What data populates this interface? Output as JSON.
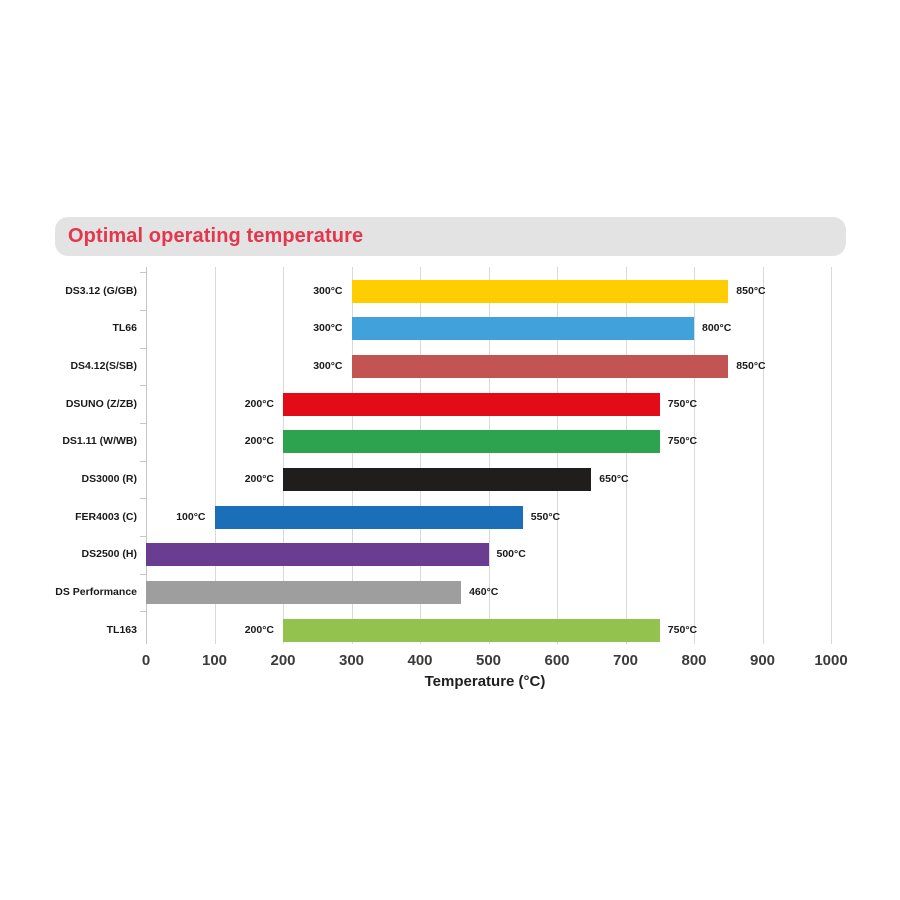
{
  "title": "Optimal operating temperature",
  "colors": {
    "title_text": "#e4374d",
    "banner_bg": "#e3e3e3",
    "grid": "#d9d9d9",
    "axis": "#c6c6c6",
    "tick_label": "#3b3b3a",
    "value_label": "#1a1a1a"
  },
  "chart_data": {
    "type": "bar",
    "orientation": "horizontal",
    "title": "Optimal operating temperature",
    "xlabel": "Temperature (°C)",
    "xlim": [
      0,
      1000
    ],
    "xticks": [
      0,
      100,
      200,
      300,
      400,
      500,
      600,
      700,
      800,
      900,
      1000
    ],
    "grid": true,
    "legend": "none",
    "categories": [
      "DS3.12 (G/GB)",
      "TL66",
      "DS4.12(S/SB)",
      "DSUNO (Z/ZB)",
      "DS1.11 (W/WB)",
      "DS3000 (R)",
      "FER4003 (C)",
      "DS2500 (H)",
      "DS Performance",
      "TL163"
    ],
    "bars": [
      {
        "label": "DS3.12 (G/GB)",
        "start": 300,
        "end": 850,
        "color": "#ffce00",
        "start_label": "300°C",
        "end_label": "850°C"
      },
      {
        "label": "TL66",
        "start": 300,
        "end": 800,
        "color": "#41a1db",
        "start_label": "300°C",
        "end_label": "800°C"
      },
      {
        "label": "DS4.12(S/SB)",
        "start": 300,
        "end": 850,
        "color": "#c25553",
        "start_label": "300°C",
        "end_label": "850°C"
      },
      {
        "label": "DSUNO (Z/ZB)",
        "start": 200,
        "end": 750,
        "color": "#e30b17",
        "start_label": "200°C",
        "end_label": "750°C"
      },
      {
        "label": "DS1.11 (W/WB)",
        "start": 200,
        "end": 750,
        "color": "#2da24f",
        "start_label": "200°C",
        "end_label": "750°C"
      },
      {
        "label": "DS3000 (R)",
        "start": 200,
        "end": 650,
        "color": "#1f1e1c",
        "start_label": "200°C",
        "end_label": "650°C"
      },
      {
        "label": "FER4003 (C)",
        "start": 100,
        "end": 550,
        "color": "#1b6fb8",
        "start_label": "100°C",
        "end_label": "550°C"
      },
      {
        "label": "DS2500 (H)",
        "start": 0,
        "end": 500,
        "color": "#6b3d92",
        "start_label": "",
        "end_label": "500°C"
      },
      {
        "label": "DS Performance",
        "start": 0,
        "end": 460,
        "color": "#9e9e9e",
        "start_label": "",
        "end_label": "460°C"
      },
      {
        "label": "TL163",
        "start": 200,
        "end": 750,
        "color": "#93c24f",
        "start_label": "200°C",
        "end_label": "750°C"
      }
    ]
  }
}
